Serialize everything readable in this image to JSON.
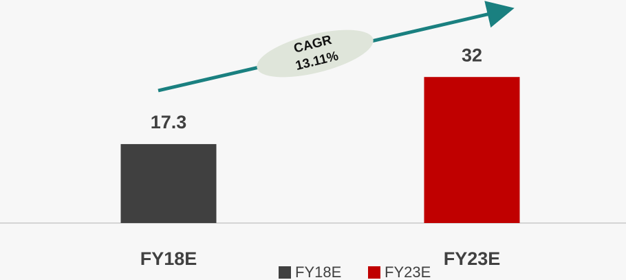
{
  "chart_data": {
    "type": "bar",
    "categories": [
      "FY18E",
      "FY23E"
    ],
    "series": [
      {
        "name": "FY18E",
        "color": "#404040",
        "values": [
          17.3,
          null
        ]
      },
      {
        "name": "FY23E",
        "color": "#c00000",
        "values": [
          null,
          32
        ]
      }
    ],
    "annotation": [
      "CAGR",
      "13.11%"
    ],
    "legend": "bottom"
  }
}
